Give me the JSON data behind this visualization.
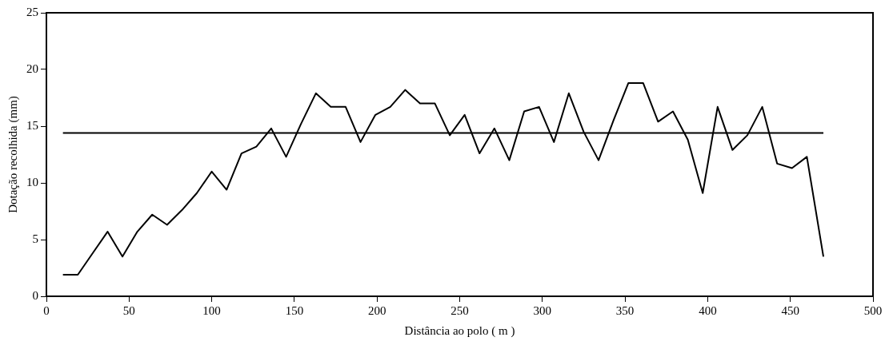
{
  "chart_data": {
    "type": "line",
    "xlabel": "Distância ao polo ( m )",
    "ylabel": "Dotação recolhida (mm)",
    "xlim": [
      0,
      500
    ],
    "xticks": [
      0,
      50,
      100,
      150,
      200,
      250,
      300,
      350,
      400,
      450,
      500
    ],
    "ylim": [
      0,
      25
    ],
    "yticks": [
      0,
      5,
      10,
      15,
      20,
      25
    ],
    "grid": false,
    "legend": false,
    "marker": "none",
    "line_style": "solid",
    "series": [
      {
        "color": "#000000",
        "x": [
          10,
          19,
          28,
          37,
          46,
          55,
          64,
          73,
          82,
          91,
          100,
          109,
          118,
          127,
          136,
          145,
          154,
          163,
          172,
          181,
          190,
          199,
          208,
          217,
          226,
          235,
          244,
          253,
          262,
          271,
          280,
          289,
          298,
          307,
          316,
          325,
          334,
          343,
          352,
          361,
          370,
          379,
          388,
          397,
          406,
          415,
          424,
          433,
          442,
          451,
          460,
          470
        ],
        "values": [
          1.9,
          1.9,
          3.8,
          5.7,
          3.5,
          5.7,
          7.2,
          6.3,
          7.6,
          9.1,
          11.0,
          9.4,
          12.6,
          13.2,
          14.8,
          12.3,
          15.2,
          17.9,
          16.7,
          16.7,
          13.6,
          16.0,
          16.7,
          18.2,
          17.0,
          17.0,
          14.2,
          16.0,
          12.6,
          14.8,
          12.0,
          16.3,
          16.7,
          13.6,
          17.9,
          14.5,
          12.0,
          15.5,
          18.8,
          18.8,
          15.4,
          16.3,
          13.8,
          9.1,
          16.7,
          12.9,
          14.2,
          16.7,
          11.7,
          11.3,
          12.3,
          3.5
        ]
      },
      {
        "color": "#000000",
        "x": [
          10,
          470
        ],
        "values": [
          14.4,
          14.4
        ]
      }
    ]
  }
}
